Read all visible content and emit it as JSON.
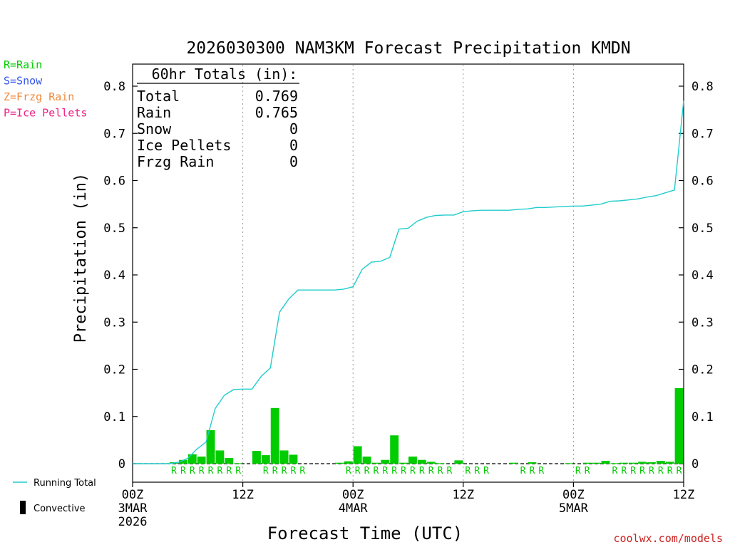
{
  "chart_data": {
    "type": "bar",
    "title": "2026030300 NAM3KM Forecast Precipitation KMDN",
    "xlabel": "Forecast Time (UTC)",
    "ylabel": "Precipitation (in)",
    "ylim": [
      0,
      0.85
    ],
    "xlim": [
      0,
      60
    ],
    "y_ticks": [
      0,
      0.1,
      0.2,
      0.3,
      0.4,
      0.5,
      0.6,
      0.7,
      0.8
    ],
    "y_tick_labels": [
      "0",
      "0.1",
      "0.2",
      "0.3",
      "0.4",
      "0.5",
      "0.6",
      "0.7",
      "0.8"
    ],
    "x_ticks": [
      {
        "hour": 0,
        "lines": [
          "00Z",
          "3MAR",
          "2026"
        ]
      },
      {
        "hour": 12,
        "lines": [
          "12Z"
        ]
      },
      {
        "hour": 24,
        "lines": [
          "00Z",
          "4MAR"
        ]
      },
      {
        "hour": 36,
        "lines": [
          "12Z"
        ]
      },
      {
        "hour": 48,
        "lines": [
          "00Z",
          "5MAR"
        ]
      },
      {
        "hour": 60,
        "lines": [
          "12Z"
        ]
      }
    ],
    "legend": {
      "precip_types": [
        {
          "label": "R=Rain",
          "color": "#00cc00"
        },
        {
          "label": "S=Snow",
          "color": "#3355ee"
        },
        {
          "label": "Z=Frzg Rain",
          "color": "#f08a3c"
        },
        {
          "label": "P=Ice Pellets",
          "color": "#ee2288"
        }
      ],
      "running_total_label": "Running Total",
      "convective_label": "Convective"
    },
    "totals": {
      "header": "60hr Totals (in):",
      "rows": [
        {
          "label": "Total",
          "value": "0.769"
        },
        {
          "label": "Rain",
          "value": "0.765"
        },
        {
          "label": "Snow",
          "value": "0"
        },
        {
          "label": "Ice Pellets",
          "value": "0"
        },
        {
          "label": "Frzg Rain",
          "value": "0"
        }
      ]
    },
    "series": [
      {
        "name": "Hourly Precipitation",
        "color": "#00cc00",
        "hours": [
          5,
          6,
          7,
          8,
          9,
          10,
          11,
          12,
          14,
          15,
          16,
          17,
          18,
          23,
          24,
          25,
          26,
          27,
          28,
          29,
          30,
          31,
          32,
          33,
          34,
          36,
          42,
          44,
          48,
          50,
          51,
          52,
          53,
          54,
          55,
          56,
          57,
          58,
          59,
          60
        ],
        "values": [
          0.003,
          0.008,
          0.02,
          0.015,
          0.071,
          0.028,
          0.012,
          0.001,
          0.027,
          0.018,
          0.118,
          0.028,
          0.019,
          0.002,
          0.005,
          0.037,
          0.015,
          0.002,
          0.008,
          0.06,
          0.002,
          0.015,
          0.008,
          0.004,
          0.001,
          0.007,
          0.002,
          0.003,
          0.001,
          0.002,
          0.002,
          0.006,
          0.001,
          0.002,
          0.002,
          0.004,
          0.003,
          0.006,
          0.004,
          0.16
        ]
      },
      {
        "name": "Running Total",
        "color": "#22cccc",
        "hours": [
          0,
          1,
          2,
          3,
          4,
          5,
          6,
          7,
          8,
          9,
          10,
          11,
          12,
          13,
          14,
          15,
          16,
          17,
          18,
          19,
          20,
          21,
          22,
          23,
          24,
          25,
          26,
          27,
          28,
          29,
          30,
          31,
          32,
          33,
          34,
          35,
          36,
          37,
          38,
          39,
          40,
          41,
          42,
          43,
          44,
          45,
          46,
          47,
          48,
          49,
          50,
          51,
          52,
          53,
          54,
          55,
          56,
          57,
          58,
          59,
          60
        ],
        "values": [
          0,
          0,
          0,
          0,
          0,
          0.003,
          0.011,
          0.031,
          0.046,
          0.117,
          0.145,
          0.157,
          0.158,
          0.158,
          0.185,
          0.203,
          0.321,
          0.349,
          0.368,
          0.368,
          0.368,
          0.368,
          0.368,
          0.37,
          0.375,
          0.412,
          0.427,
          0.429,
          0.437,
          0.497,
          0.499,
          0.514,
          0.522,
          0.526,
          0.527,
          0.527,
          0.534,
          0.536,
          0.537,
          0.537,
          0.537,
          0.537,
          0.539,
          0.54,
          0.543,
          0.543,
          0.544,
          0.545,
          0.546,
          0.546,
          0.548,
          0.55,
          0.556,
          0.557,
          0.559,
          0.561,
          0.565,
          0.568,
          0.574,
          0.58,
          0.769
        ]
      }
    ],
    "type_markers": {
      "letter": "R",
      "hours": [
        5,
        6,
        7,
        8,
        9,
        10,
        11,
        12,
        15,
        16,
        17,
        18,
        19,
        24,
        25,
        26,
        27,
        28,
        29,
        30,
        31,
        32,
        33,
        34,
        35,
        37,
        38,
        39,
        43,
        44,
        45,
        49,
        50,
        53,
        54,
        55,
        56,
        57,
        58,
        59,
        60
      ]
    },
    "convective_hours": []
  },
  "footer": {
    "credit": "coolwx.com/models"
  }
}
